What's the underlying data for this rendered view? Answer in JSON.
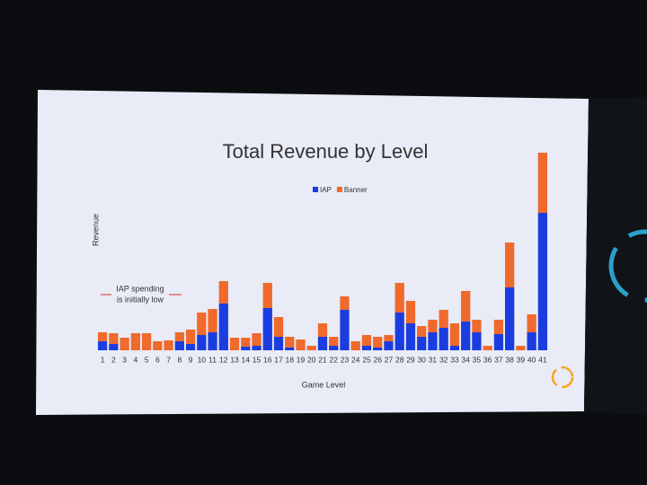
{
  "chart_data": {
    "type": "stacked_bar",
    "title": "Total Revenue by Level",
    "x_label": "Game Level",
    "y_label": "Revenue",
    "annotation": [
      "IAP spending",
      "is initially low"
    ],
    "legend": "top",
    "categories": [
      "1",
      "2",
      "3",
      "4",
      "5",
      "6",
      "7",
      "8",
      "9",
      "10",
      "11",
      "12",
      "13",
      "14",
      "15",
      "16",
      "17",
      "18",
      "19",
      "20",
      "21",
      "22",
      "23",
      "24",
      "25",
      "26",
      "27",
      "28",
      "29",
      "30",
      "31",
      "32",
      "33",
      "34",
      "35",
      "36",
      "37",
      "38",
      "39",
      "40",
      "41"
    ],
    "series": [
      {
        "name": "IAP",
        "color": "#1b3de0",
        "values": [
          10,
          7,
          0,
          0,
          0,
          0,
          0,
          10,
          7,
          17,
          20,
          52,
          0,
          4,
          5,
          47,
          15,
          3,
          0,
          0,
          15,
          5,
          45,
          0,
          5,
          3,
          10,
          42,
          30,
          15,
          20,
          25,
          5,
          32,
          20,
          0,
          18,
          70,
          0,
          20,
          153
        ]
      },
      {
        "name": "Banner",
        "color": "#ef6a2c",
        "values": [
          10,
          12,
          14,
          19,
          19,
          10,
          11,
          10,
          16,
          25,
          26,
          25,
          14,
          10,
          14,
          28,
          22,
          12,
          12,
          5,
          15,
          10,
          15,
          10,
          12,
          12,
          7,
          33,
          25,
          12,
          14,
          20,
          25,
          34,
          14,
          5,
          16,
          50,
          5,
          20,
          67
        ]
      }
    ],
    "ylim": [
      0,
      230
    ]
  }
}
